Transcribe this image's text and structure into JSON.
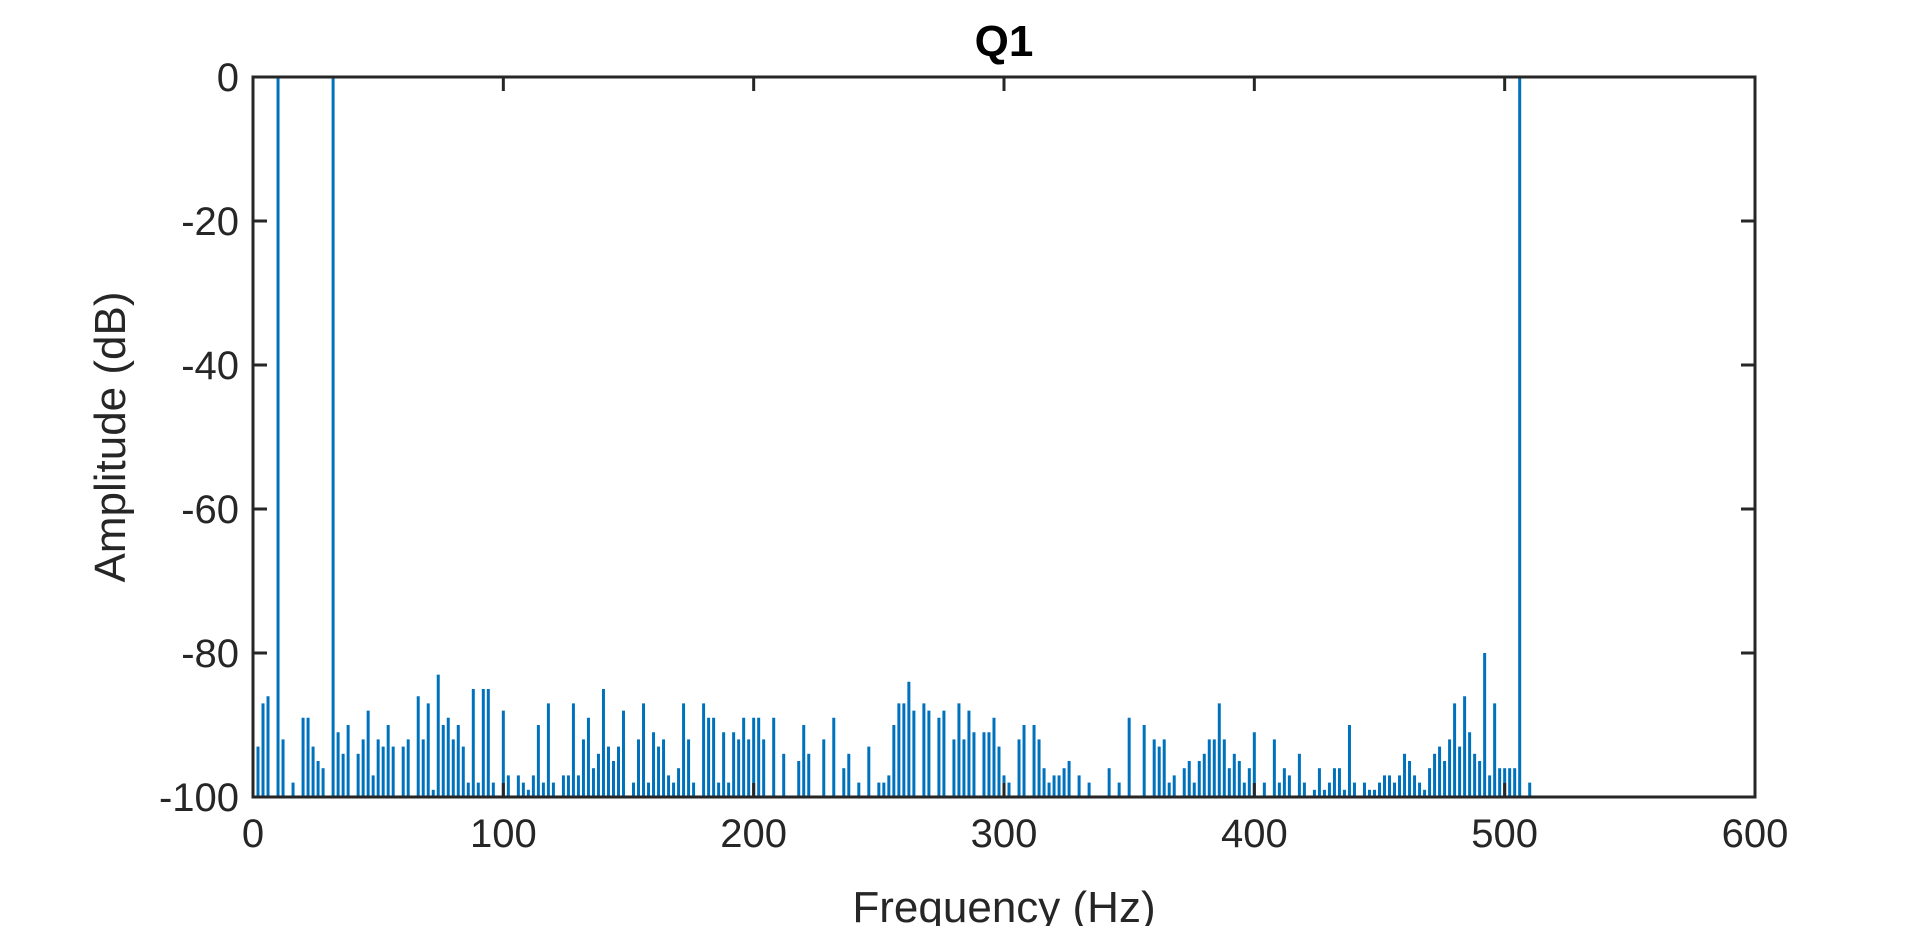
{
  "chart_data": {
    "type": "bar",
    "title": "Q1",
    "xlabel": "Frequency (Hz)",
    "ylabel": "Amplitude (dB)",
    "xlim": [
      0,
      600
    ],
    "ylim": [
      -100,
      0
    ],
    "xticks": [
      "0",
      "100",
      "200",
      "300",
      "400",
      "500",
      "600"
    ],
    "yticks": [
      "0",
      "-20",
      "-40",
      "-60",
      "-80",
      "-100"
    ],
    "grid": false,
    "bar_color": "#0072BD",
    "baseline": -100,
    "x": [
      2,
      4,
      6,
      10,
      12,
      16,
      20,
      22,
      24,
      26,
      28,
      32,
      34,
      36,
      38,
      42,
      44,
      46,
      48,
      50,
      52,
      54,
      56,
      60,
      62,
      66,
      68,
      70,
      72,
      74,
      76,
      78,
      80,
      82,
      84,
      86,
      88,
      90,
      92,
      94,
      96,
      100,
      102,
      106,
      108,
      110,
      112,
      114,
      116,
      118,
      120,
      124,
      126,
      128,
      130,
      132,
      134,
      136,
      138,
      140,
      142,
      144,
      146,
      148,
      152,
      154,
      156,
      158,
      160,
      162,
      164,
      166,
      168,
      170,
      172,
      174,
      176,
      180,
      182,
      184,
      186,
      188,
      190,
      192,
      194,
      196,
      198,
      200,
      202,
      204,
      208,
      212,
      218,
      220,
      222,
      228,
      232,
      236,
      238,
      242,
      246,
      250,
      252,
      254,
      256,
      258,
      260,
      262,
      264,
      268,
      270,
      274,
      276,
      280,
      282,
      284,
      286,
      288,
      292,
      294,
      296,
      298,
      300,
      302,
      306,
      308,
      312,
      314,
      316,
      318,
      320,
      322,
      324,
      326,
      330,
      334,
      342,
      346,
      350,
      356,
      360,
      362,
      364,
      366,
      368,
      372,
      374,
      376,
      378,
      380,
      382,
      384,
      386,
      388,
      390,
      392,
      394,
      396,
      398,
      400,
      404,
      408,
      410,
      412,
      414,
      418,
      420,
      424,
      426,
      428,
      430,
      432,
      434,
      436,
      438,
      440,
      444,
      446,
      448,
      450,
      452,
      454,
      456,
      458,
      460,
      462,
      464,
      466,
      468,
      470,
      472,
      474,
      476,
      478,
      480,
      482,
      484,
      486,
      488,
      490,
      492,
      494,
      496,
      498,
      500,
      502,
      504,
      506,
      510
    ],
    "values": [
      -93,
      -87,
      -86,
      0,
      -92,
      -98,
      -89,
      -89,
      -93,
      -95,
      -96,
      0,
      -91,
      -94,
      -90,
      -94,
      -92,
      -88,
      -97,
      -92,
      -93,
      -90,
      -93,
      -93,
      -92,
      -86,
      -92,
      -87,
      -99,
      -83,
      -90,
      -89,
      -92,
      -90,
      -93,
      -98,
      -85,
      -98,
      -85,
      -85,
      -98,
      -88,
      -97,
      -97,
      -98,
      -99,
      -97,
      -90,
      -98,
      -87,
      -98,
      -97,
      -97,
      -87,
      -97,
      -92,
      -89,
      -96,
      -94,
      -85,
      -93,
      -95,
      -93,
      -88,
      -98,
      -92,
      -87,
      -98,
      -91,
      -93,
      -92,
      -97,
      -98,
      -96,
      -87,
      -92,
      -98,
      -87,
      -89,
      -89,
      -98,
      -91,
      -98,
      -91,
      -92,
      -89,
      -92,
      -89,
      -89,
      -92,
      -89,
      -94,
      -95,
      -90,
      -94,
      -92,
      -89,
      -96,
      -94,
      -98,
      -93,
      -98,
      -98,
      -97,
      -90,
      -87,
      -87,
      -84,
      -88,
      -87,
      -88,
      -89,
      -88,
      -92,
      -87,
      -92,
      -88,
      -91,
      -91,
      -91,
      -89,
      -93,
      -97,
      -98,
      -92,
      -90,
      -90,
      -92,
      -96,
      -98,
      -97,
      -97,
      -96,
      -95,
      -97,
      -98,
      -96,
      -98,
      -89,
      -90,
      -92,
      -93,
      -92,
      -98,
      -97,
      -96,
      -95,
      -98,
      -95,
      -94,
      -92,
      -92,
      -87,
      -92,
      -96,
      -94,
      -95,
      -98,
      -96,
      -91,
      -98,
      -92,
      -98,
      -96,
      -97,
      -94,
      -98,
      -99,
      -96,
      -99,
      -98,
      -96,
      -96,
      -99,
      -90,
      -98,
      -98,
      -99,
      -99,
      -98,
      -97,
      -97,
      -98,
      -97,
      -94,
      -95,
      -97,
      -98,
      -99,
      -96,
      -94,
      -93,
      -95,
      -92,
      -87,
      -93,
      -86,
      -91,
      -94,
      -95,
      -80,
      -97,
      -87,
      -96,
      -96,
      -96,
      -96,
      0,
      -98
    ]
  }
}
